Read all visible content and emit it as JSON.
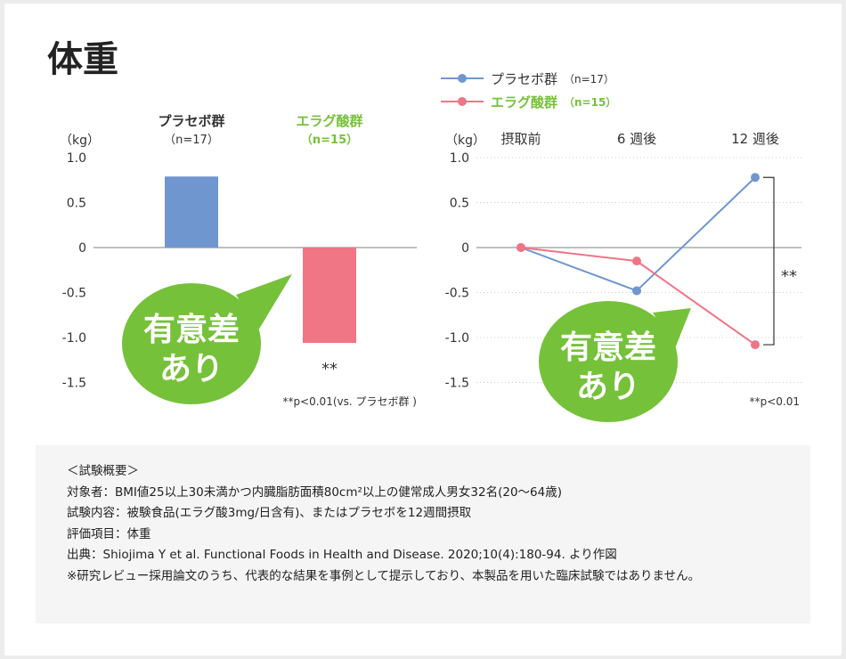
{
  "title": "体重",
  "colors": {
    "placebo": "#6f96cf",
    "ellagic": "#f07585",
    "accent": "#76c13a",
    "axis": "#aaaaaa"
  },
  "chart_data": [
    {
      "type": "bar",
      "categories": [
        "プラセボ群",
        "エラグ酸群"
      ],
      "category_n": [
        "（n=17）",
        "（n=15）"
      ],
      "values": [
        0.79,
        -1.06
      ],
      "ylabel": "（kg）",
      "ylim": [
        -1.5,
        1.0
      ],
      "yticks": [
        "1.0",
        "0.5",
        "0",
        "-0.5",
        "-1.0",
        "-1.5"
      ],
      "ytick_values": [
        1.0,
        0.5,
        0,
        -0.5,
        -1.0,
        -1.5
      ],
      "significance": "**",
      "footnote": "**p<0.01(vs. プラセボ群 )",
      "callout": [
        "有意差",
        "あり"
      ]
    },
    {
      "type": "line",
      "x": [
        "摂取前",
        "6 週後",
        "12 週後"
      ],
      "series": [
        {
          "name": "プラセボ群",
          "n": "（n=17）",
          "values": [
            0,
            -0.48,
            0.78
          ]
        },
        {
          "name": "エラグ酸群",
          "n": "（n=15）",
          "values": [
            0,
            -0.15,
            -1.08
          ]
        }
      ],
      "ylabel": "（kg）",
      "ylim": [
        -1.5,
        1.0
      ],
      "yticks": [
        "1.0",
        "0.5",
        "0",
        "-0.5",
        "-1.0",
        "-1.5"
      ],
      "ytick_values": [
        1.0,
        0.5,
        0,
        -0.5,
        -1.0,
        -1.5
      ],
      "grid": "dotted",
      "legend": "top-left",
      "significance": "**",
      "footnote": "**p<0.01",
      "callout": [
        "有意差",
        "あり"
      ]
    }
  ],
  "summary": {
    "heading": "＜試験概要＞",
    "lines": [
      "対象者：BMI値25以上30未満かつ内臓脂肪面積80cm²以上の健常成人男女32名(20〜64歳)",
      "試験内容：被験食品(エラグ酸3mg/日含有)、またはプラセボを12週間摂取",
      "評価項目：体重",
      "出典：Shiojima Y et al. Functional Foods in Health and Disease. 2020;10(4):180-94. より作図",
      "※研究レビュー採用論文のうち、代表的な結果を事例として提示しており、本製品を用いた臨床試験ではありません。"
    ]
  }
}
